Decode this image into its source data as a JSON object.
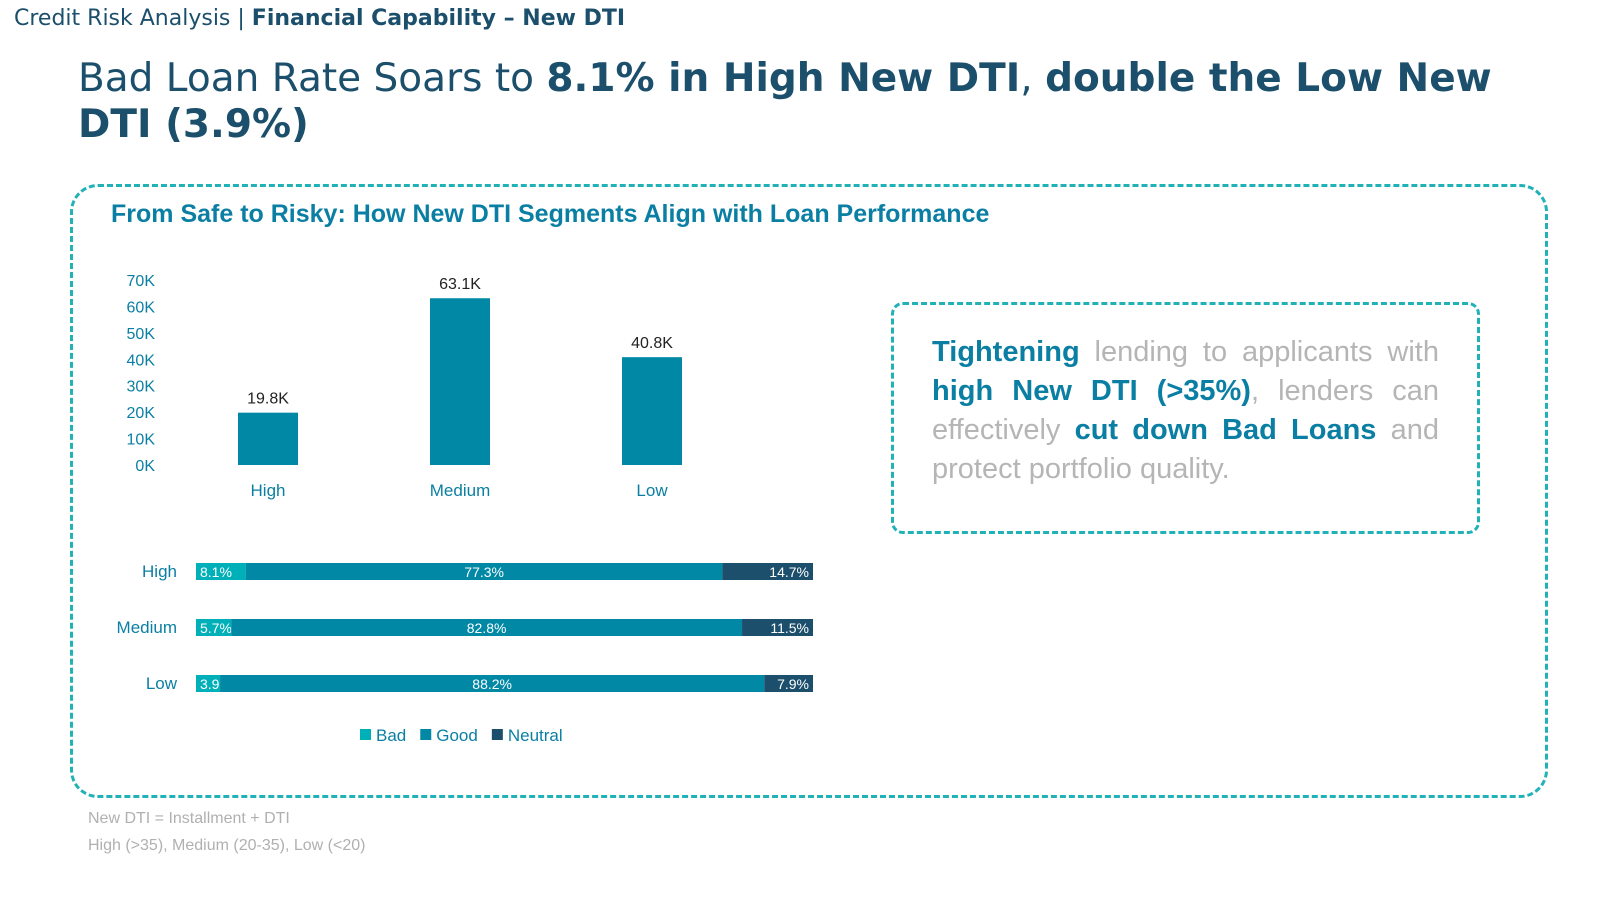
{
  "header": {
    "section": "Credit Risk Analysis",
    "separator": " | ",
    "subsection": "Financial Capability – New DTI"
  },
  "headline": {
    "part1": "Bad Loan Rate Soars to ",
    "bold1": "8.1% in High New DTI",
    "part2": ", ",
    "bold2": "double the Low New DTI (3.9%)"
  },
  "chart_title": "From Safe to Risky: How New DTI Segments Align with Loan Performance",
  "colors": {
    "bad": "#00b0b9",
    "good": "#0088a5",
    "neutral": "#1b4f6b",
    "accent": "#21b2b8"
  },
  "chart_data": [
    {
      "type": "bar",
      "categories": [
        "High",
        "Medium",
        "Low"
      ],
      "values": [
        19.8,
        63.1,
        40.8
      ],
      "data_labels": [
        "19.8K",
        "63.1K",
        "40.8K"
      ],
      "yticks": [
        "0K",
        "10K",
        "20K",
        "30K",
        "40K",
        "50K",
        "60K",
        "70K"
      ],
      "ylim": [
        0,
        70
      ],
      "grid": false
    },
    {
      "type": "bar",
      "orientation": "horizontal-stacked-100",
      "categories": [
        "High",
        "Medium",
        "Low"
      ],
      "series": [
        {
          "name": "Bad",
          "values": [
            8.1,
            5.7,
            3.9
          ]
        },
        {
          "name": "Good",
          "values": [
            77.3,
            82.8,
            88.2
          ]
        },
        {
          "name": "Neutral",
          "values": [
            14.7,
            11.5,
            7.9
          ]
        }
      ],
      "legend": "bottom"
    }
  ],
  "insight": {
    "t1": "Tightening",
    "t2": " lending to applicants with ",
    "t3": "high New DTI (>35%)",
    "t4": ", lenders can effectively ",
    "t5": "cut down Bad Loans",
    "t6": " and protect portfolio quality."
  },
  "notes": [
    "New DTI = Installment + DTI",
    "High (>35), Medium (20-35), Low (<20)"
  ]
}
